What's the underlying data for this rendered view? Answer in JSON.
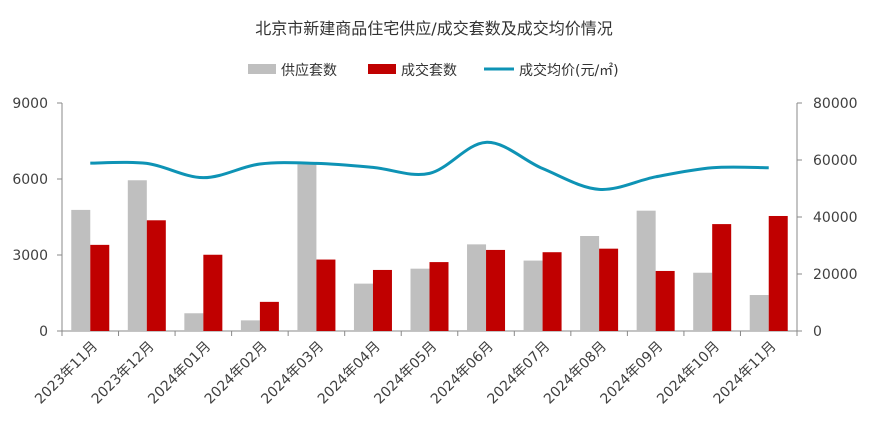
{
  "chart_data": {
    "type": "bar",
    "title": "北京市新建商品住宅供应/成交套数及成交均价情况",
    "categories": [
      "2023年11月",
      "2023年12月",
      "2024年01月",
      "2024年02月",
      "2024年03月",
      "2024年04月",
      "2024年05月",
      "2024年06月",
      "2024年07月",
      "2024年08月",
      "2024年09月",
      "2024年10月",
      "2024年11月"
    ],
    "series": [
      {
        "name": "供应套数",
        "type": "bar",
        "axis": "left",
        "color": "#BFBFBF",
        "values": [
          4780,
          5950,
          700,
          420,
          6580,
          1870,
          2460,
          3420,
          2780,
          3750,
          4750,
          2300,
          1420
        ]
      },
      {
        "name": "成交套数",
        "type": "bar",
        "axis": "left",
        "color": "#C00000",
        "values": [
          3400,
          4370,
          3010,
          1150,
          2820,
          2410,
          2720,
          3200,
          3110,
          3250,
          2370,
          4220,
          4540
        ]
      },
      {
        "name": "成交均价(元/㎡)",
        "type": "line",
        "axis": "right",
        "color": "#0E93B5",
        "values": [
          58900,
          58800,
          53800,
          58600,
          58800,
          57400,
          55300,
          66200,
          57000,
          49700,
          54100,
          57300,
          57300
        ]
      }
    ],
    "y_left": {
      "min": 0,
      "max": 9000,
      "ticks": [
        "0",
        "3000",
        "6000",
        "9000"
      ]
    },
    "y_right": {
      "min": 0,
      "max": 80000,
      "ticks": [
        "0",
        "20000",
        "40000",
        "60000",
        "80000"
      ]
    },
    "legend_position": "top-center",
    "grid": false
  }
}
